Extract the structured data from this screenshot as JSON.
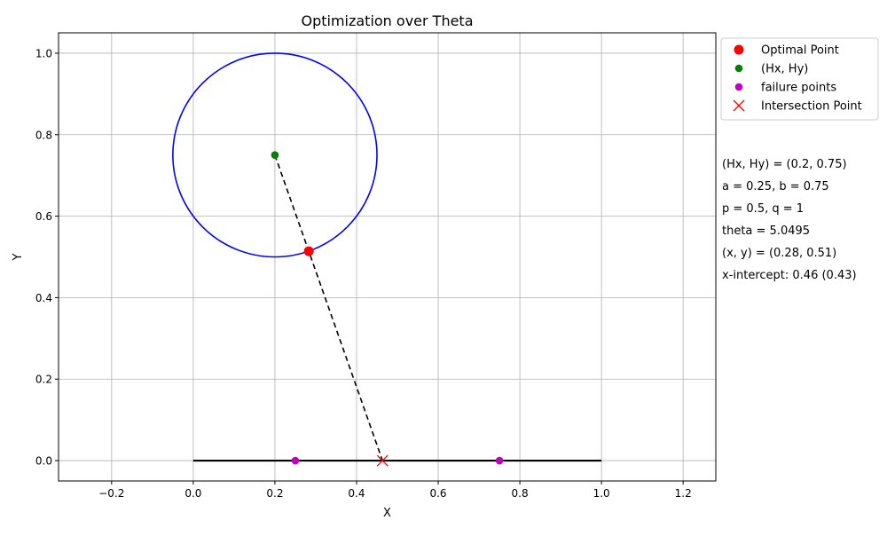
{
  "chart_data": {
    "type": "scatter",
    "title": "Optimization over Theta",
    "xlabel": "X",
    "ylabel": "Y",
    "xlim": [
      -0.33,
      1.28
    ],
    "ylim": [
      -0.05,
      1.05
    ],
    "xticks": [
      -0.2,
      0.0,
      0.2,
      0.4,
      0.6,
      0.8,
      1.0,
      1.2
    ],
    "xtick_labels": [
      "−0.2",
      "0.0",
      "0.2",
      "0.4",
      "0.6",
      "0.8",
      "1.0",
      "1.2"
    ],
    "yticks": [
      0.0,
      0.2,
      0.4,
      0.6,
      0.8,
      1.0
    ],
    "ytick_labels": [
      "0.0",
      "0.2",
      "0.4",
      "0.6",
      "0.8",
      "1.0"
    ],
    "grid": true,
    "legend_position": "outside-top-right",
    "circle": {
      "center": [
        0.2,
        0.75
      ],
      "radius": 0.25,
      "color": "#0000ff"
    },
    "segment": {
      "from": [
        0.0,
        0.0
      ],
      "to": [
        1.0,
        0.0
      ],
      "color": "#000000"
    },
    "dashed_line": {
      "from": [
        0.2,
        0.75
      ],
      "to": [
        0.4635,
        0.0
      ],
      "color": "#000000"
    },
    "series": [
      {
        "name": "Optimal Point",
        "marker": "circle-large",
        "color": "#ff0000",
        "points": [
          [
            0.283,
            0.514
          ]
        ]
      },
      {
        "name": "(Hx, Hy)",
        "marker": "circle",
        "color": "#008000",
        "points": [
          [
            0.2,
            0.75
          ]
        ]
      },
      {
        "name": "failure points",
        "marker": "circle",
        "color": "#bf00bf",
        "points": [
          [
            0.25,
            0.0
          ],
          [
            0.75,
            0.0
          ]
        ]
      },
      {
        "name": "Intersection Point",
        "marker": "x",
        "color": "#ff0000",
        "points": [
          [
            0.4635,
            0.0
          ]
        ]
      }
    ],
    "annotations": [
      "(Hx, Hy) = (0.2, 0.75)",
      "a = 0.25, b = 0.75",
      "p = 0.5, q = 1",
      "theta = 5.0495",
      "(x, y) = (0.28, 0.51)",
      "x-intercept: 0.46 (0.43)"
    ]
  }
}
